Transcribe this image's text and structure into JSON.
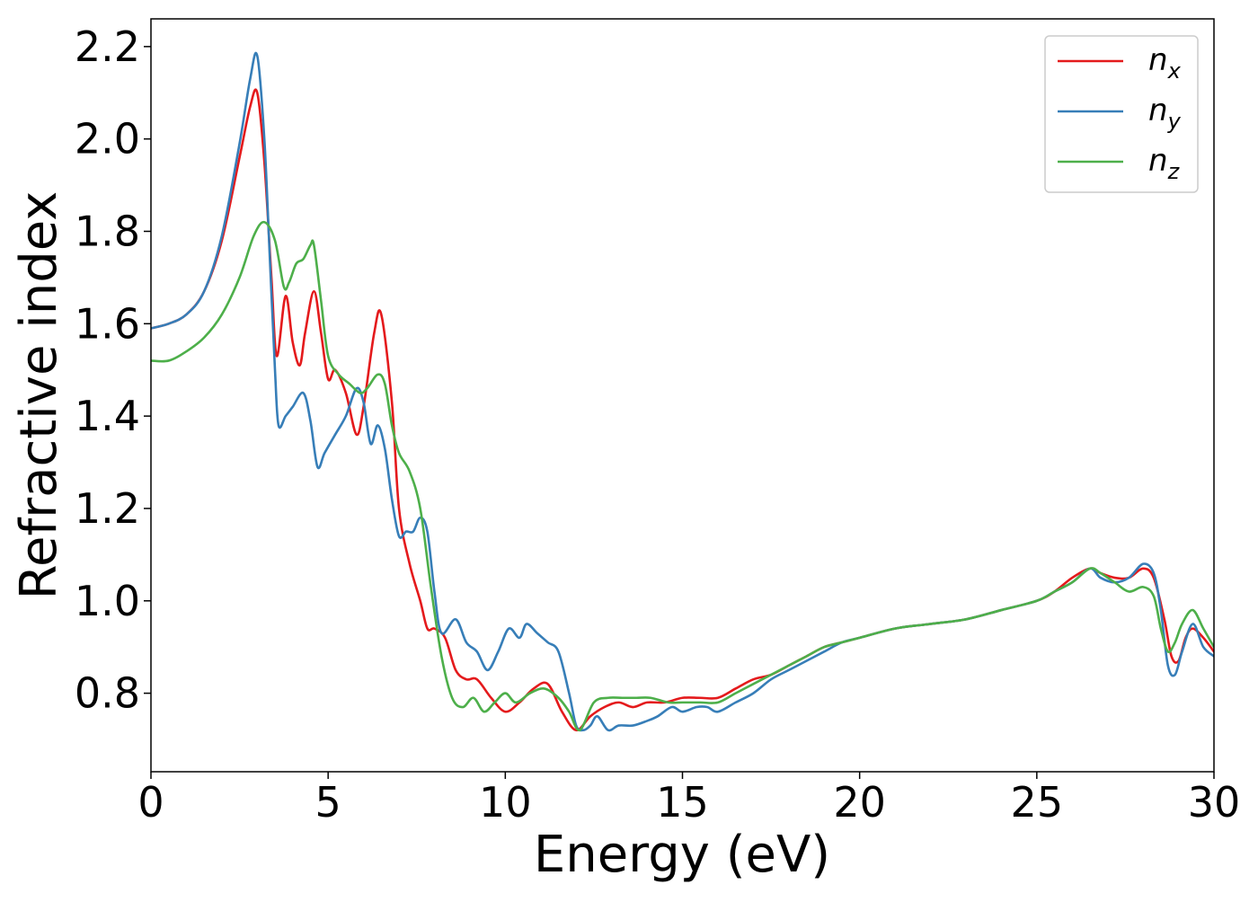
{
  "chart_data": {
    "type": "line",
    "xlabel": "Energy (eV)",
    "ylabel": "Refractive index",
    "xlim": [
      0,
      30
    ],
    "ylim": [
      0.63,
      2.26
    ],
    "xticks": [
      "0",
      "5",
      "10",
      "15",
      "20",
      "25",
      "30"
    ],
    "yticks": [
      "0.8",
      "1.0",
      "1.2",
      "1.4",
      "1.6",
      "1.8",
      "2.0",
      "2.2"
    ],
    "grid": false,
    "legend_position": "top-right",
    "series": [
      {
        "name": "n_x",
        "label_base": "n",
        "label_sub": "x",
        "color": "#e41a1c",
        "x": [
          0,
          0.5,
          1.0,
          1.5,
          2.0,
          2.5,
          2.8,
          3.0,
          3.2,
          3.4,
          3.55,
          3.8,
          4.0,
          4.2,
          4.35,
          4.6,
          4.8,
          5.0,
          5.2,
          5.5,
          5.8,
          6.0,
          6.3,
          6.5,
          6.8,
          7.0,
          7.3,
          7.6,
          7.8,
          8.0,
          8.3,
          8.6,
          8.9,
          9.2,
          9.6,
          10.0,
          10.4,
          10.8,
          11.2,
          11.6,
          12.0,
          12.4,
          12.8,
          13.2,
          13.6,
          14.0,
          14.5,
          15.0,
          15.5,
          16.0,
          16.5,
          17.0,
          17.5,
          18.0,
          18.5,
          19.0,
          19.5,
          20.0,
          21.0,
          22.0,
          23.0,
          24.0,
          25.0,
          25.5,
          26.0,
          26.5,
          26.8,
          27.2,
          27.6,
          28.0,
          28.3,
          28.6,
          28.8,
          29.0,
          29.2,
          29.4,
          29.7,
          30.0
        ],
        "values": [
          1.59,
          1.6,
          1.62,
          1.67,
          1.78,
          1.96,
          2.07,
          2.1,
          1.95,
          1.7,
          1.53,
          1.66,
          1.56,
          1.51,
          1.58,
          1.67,
          1.58,
          1.48,
          1.5,
          1.45,
          1.36,
          1.42,
          1.58,
          1.62,
          1.43,
          1.2,
          1.08,
          1.0,
          0.94,
          0.94,
          0.92,
          0.85,
          0.83,
          0.83,
          0.79,
          0.76,
          0.78,
          0.81,
          0.82,
          0.76,
          0.72,
          0.75,
          0.77,
          0.78,
          0.77,
          0.78,
          0.78,
          0.79,
          0.79,
          0.79,
          0.81,
          0.83,
          0.84,
          0.86,
          0.88,
          0.9,
          0.91,
          0.92,
          0.94,
          0.95,
          0.96,
          0.98,
          1.0,
          1.02,
          1.05,
          1.07,
          1.06,
          1.05,
          1.05,
          1.07,
          1.05,
          0.96,
          0.88,
          0.87,
          0.92,
          0.94,
          0.92,
          0.89
        ]
      },
      {
        "name": "n_y",
        "label_base": "n",
        "label_sub": "y",
        "color": "#377eb8",
        "x": [
          0,
          0.5,
          1.0,
          1.5,
          2.0,
          2.5,
          2.8,
          3.0,
          3.2,
          3.35,
          3.5,
          3.6,
          3.8,
          4.0,
          4.3,
          4.5,
          4.7,
          4.9,
          5.2,
          5.5,
          5.8,
          6.0,
          6.2,
          6.4,
          6.6,
          6.8,
          7.0,
          7.2,
          7.4,
          7.6,
          7.8,
          8.0,
          8.2,
          8.6,
          8.9,
          9.2,
          9.5,
          9.8,
          10.1,
          10.4,
          10.6,
          10.9,
          11.2,
          11.5,
          11.8,
          12.0,
          12.2,
          12.4,
          12.6,
          12.9,
          13.2,
          13.6,
          14.0,
          14.3,
          14.7,
          15.0,
          15.4,
          15.7,
          16.0,
          16.5,
          17.0,
          17.5,
          18.0,
          18.5,
          19.0,
          19.5,
          20.0,
          21.0,
          22.0,
          23.0,
          24.0,
          25.0,
          25.5,
          26.0,
          26.5,
          26.8,
          27.2,
          27.6,
          28.0,
          28.3,
          28.5,
          28.7,
          28.9,
          29.1,
          29.4,
          29.7,
          30.0
        ],
        "values": [
          1.59,
          1.6,
          1.62,
          1.67,
          1.79,
          1.99,
          2.13,
          2.18,
          2.0,
          1.75,
          1.5,
          1.38,
          1.4,
          1.42,
          1.45,
          1.39,
          1.29,
          1.32,
          1.36,
          1.4,
          1.46,
          1.43,
          1.34,
          1.38,
          1.33,
          1.22,
          1.14,
          1.15,
          1.15,
          1.18,
          1.15,
          1.02,
          0.93,
          0.96,
          0.91,
          0.89,
          0.85,
          0.89,
          0.94,
          0.92,
          0.95,
          0.93,
          0.91,
          0.89,
          0.8,
          0.73,
          0.72,
          0.73,
          0.75,
          0.72,
          0.73,
          0.73,
          0.74,
          0.75,
          0.77,
          0.76,
          0.77,
          0.77,
          0.76,
          0.78,
          0.8,
          0.83,
          0.85,
          0.87,
          0.89,
          0.91,
          0.92,
          0.94,
          0.95,
          0.96,
          0.98,
          1.0,
          1.02,
          1.04,
          1.07,
          1.05,
          1.04,
          1.05,
          1.08,
          1.06,
          0.98,
          0.86,
          0.84,
          0.89,
          0.95,
          0.9,
          0.88
        ]
      },
      {
        "name": "n_z",
        "label_base": "n",
        "label_sub": "z",
        "color": "#4daf4a",
        "x": [
          0,
          0.5,
          1.0,
          1.5,
          2.0,
          2.5,
          2.9,
          3.2,
          3.5,
          3.75,
          3.9,
          4.1,
          4.3,
          4.5,
          4.6,
          4.8,
          5.0,
          5.3,
          5.6,
          5.9,
          6.1,
          6.4,
          6.6,
          6.8,
          7.0,
          7.3,
          7.6,
          7.9,
          8.2,
          8.5,
          8.8,
          9.1,
          9.4,
          9.7,
          10.0,
          10.3,
          10.7,
          11.1,
          11.5,
          11.8,
          12.1,
          12.5,
          12.9,
          13.3,
          13.7,
          14.1,
          14.6,
          15.0,
          15.5,
          16.0,
          16.5,
          17.0,
          17.5,
          18.0,
          18.5,
          19.0,
          19.5,
          20.0,
          21.0,
          22.0,
          23.0,
          24.0,
          25.0,
          25.5,
          26.0,
          26.5,
          26.8,
          27.2,
          27.6,
          28.0,
          28.3,
          28.5,
          28.7,
          28.9,
          29.1,
          29.4,
          29.7,
          30.0
        ],
        "values": [
          1.52,
          1.52,
          1.54,
          1.57,
          1.62,
          1.7,
          1.79,
          1.82,
          1.78,
          1.68,
          1.69,
          1.73,
          1.74,
          1.77,
          1.77,
          1.65,
          1.53,
          1.49,
          1.47,
          1.45,
          1.46,
          1.49,
          1.47,
          1.38,
          1.32,
          1.28,
          1.2,
          1.03,
          0.88,
          0.79,
          0.77,
          0.79,
          0.76,
          0.78,
          0.8,
          0.78,
          0.8,
          0.81,
          0.79,
          0.76,
          0.72,
          0.78,
          0.79,
          0.79,
          0.79,
          0.79,
          0.78,
          0.78,
          0.78,
          0.78,
          0.8,
          0.82,
          0.84,
          0.86,
          0.88,
          0.9,
          0.91,
          0.92,
          0.94,
          0.95,
          0.96,
          0.98,
          1.0,
          1.02,
          1.04,
          1.07,
          1.06,
          1.04,
          1.02,
          1.03,
          1.01,
          0.94,
          0.89,
          0.91,
          0.95,
          0.98,
          0.94,
          0.9
        ]
      }
    ]
  }
}
